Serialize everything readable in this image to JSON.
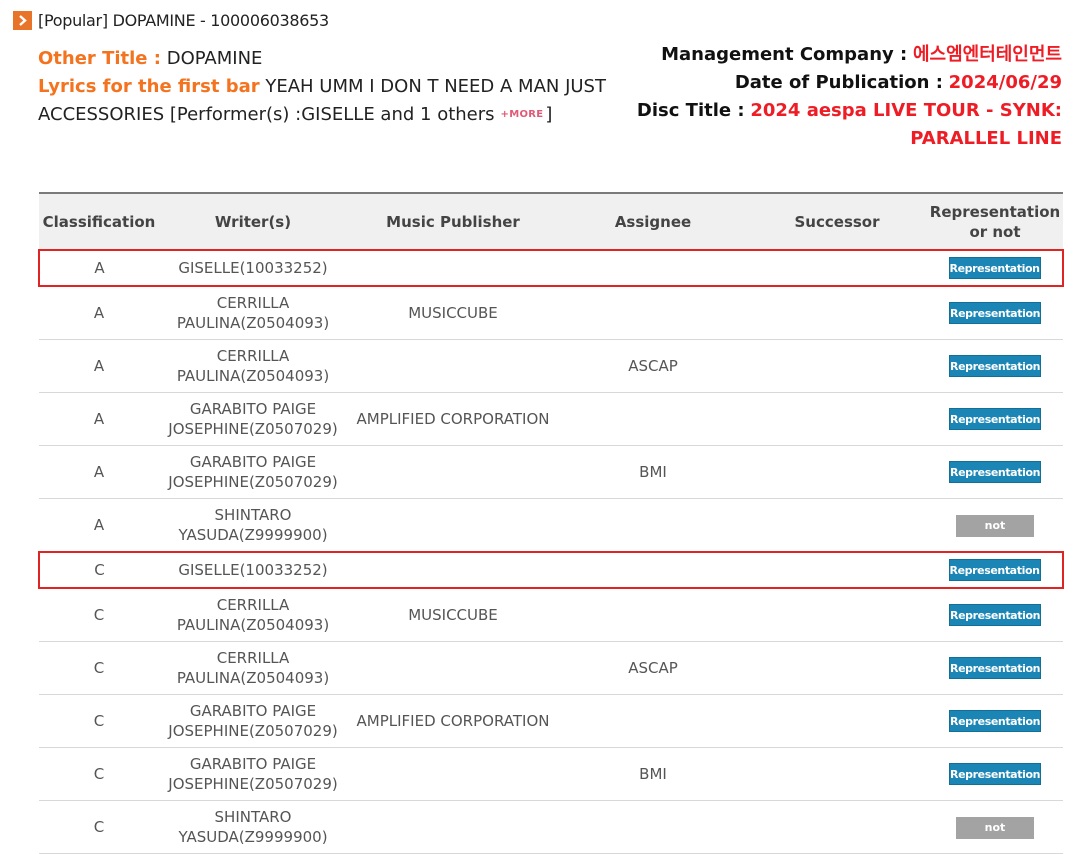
{
  "header": {
    "title": "[Popular] DOPAMINE - 100006038653"
  },
  "info": {
    "other_title_label": "Other Title :",
    "other_title_value": "DOPAMINE",
    "lyrics_label": "Lyrics for the first bar",
    "lyrics_value": "YEAH UMM I DON T NEED A MAN JUST ACCESSORIES [Performer(s) :GISELLE and 1 others",
    "more_label": "+MORE",
    "lyrics_close": "]",
    "management_label": "Management Company :",
    "management_value": "에스엠엔터테인먼트",
    "date_label": "Date of Publication :",
    "date_value": "2024/06/29",
    "disc_label": "Disc Title :",
    "disc_value": "2024 aespa LIVE TOUR - SYNK: PARALLEL LINE"
  },
  "table": {
    "headers": [
      "Classification",
      "Writer(s)",
      "Music Publisher",
      "Assignee",
      "Successor",
      "Representation or not"
    ],
    "rows": [
      {
        "classification": "A",
        "writer": "GISELLE(10033252)",
        "publisher": "",
        "assignee": "",
        "successor": "",
        "status": "Representation"
      },
      {
        "classification": "A",
        "writer": "CERRILLA PAULINA(Z0504093)",
        "publisher": "MUSICCUBE",
        "assignee": "",
        "successor": "",
        "status": "Representation"
      },
      {
        "classification": "A",
        "writer": "CERRILLA PAULINA(Z0504093)",
        "publisher": "",
        "assignee": "ASCAP",
        "successor": "",
        "status": "Representation"
      },
      {
        "classification": "A",
        "writer": "GARABITO PAIGE JOSEPHINE(Z0507029)",
        "publisher": "AMPLIFIED CORPORATION",
        "assignee": "",
        "successor": "",
        "status": "Representation"
      },
      {
        "classification": "A",
        "writer": "GARABITO PAIGE JOSEPHINE(Z0507029)",
        "publisher": "",
        "assignee": "BMI",
        "successor": "",
        "status": "Representation"
      },
      {
        "classification": "A",
        "writer": "SHINTARO YASUDA(Z9999900)",
        "publisher": "",
        "assignee": "",
        "successor": "",
        "status": "not"
      },
      {
        "classification": "C",
        "writer": "GISELLE(10033252)",
        "publisher": "",
        "assignee": "",
        "successor": "",
        "status": "Representation"
      },
      {
        "classification": "C",
        "writer": "CERRILLA PAULINA(Z0504093)",
        "publisher": "MUSICCUBE",
        "assignee": "",
        "successor": "",
        "status": "Representation"
      },
      {
        "classification": "C",
        "writer": "CERRILLA PAULINA(Z0504093)",
        "publisher": "",
        "assignee": "ASCAP",
        "successor": "",
        "status": "Representation"
      },
      {
        "classification": "C",
        "writer": "GARABITO PAIGE JOSEPHINE(Z0507029)",
        "publisher": "AMPLIFIED CORPORATION",
        "assignee": "",
        "successor": "",
        "status": "Representation"
      },
      {
        "classification": "C",
        "writer": "GARABITO PAIGE JOSEPHINE(Z0507029)",
        "publisher": "",
        "assignee": "BMI",
        "successor": "",
        "status": "Representation"
      },
      {
        "classification": "C",
        "writer": "SHINTARO YASUDA(Z9999900)",
        "publisher": "",
        "assignee": "",
        "successor": "",
        "status": "not"
      }
    ]
  },
  "colors": {
    "orange_label": "#f4731f",
    "red_value": "#ee1c25",
    "representation_button": "#1b86b5",
    "not_button": "#a3a3a3",
    "highlight_border": "#e02424"
  },
  "icons": {
    "header_icon": "chevron-right-icon"
  }
}
